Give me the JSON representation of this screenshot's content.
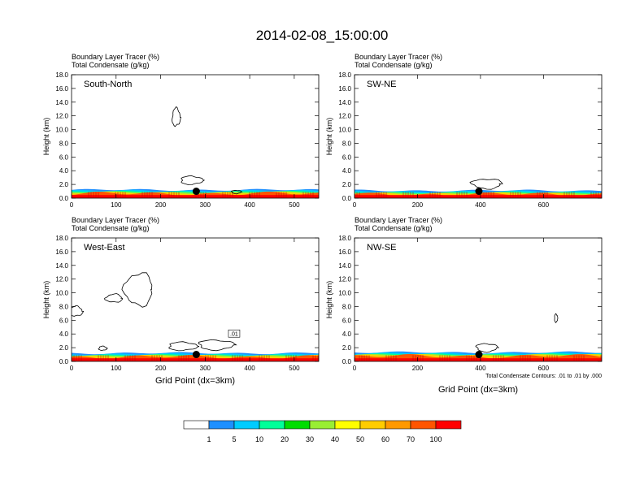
{
  "title": "2014-02-08_15:00:00",
  "chart_data": [
    {
      "type": "heatmap",
      "panel": "South-North",
      "label": "South-North",
      "line1": "Boundary Layer Tracer   (%)",
      "line2": "Total Condensate   (g/kg)",
      "ylabel": "Height (km)",
      "xlabel": "",
      "xlim": [
        0,
        555
      ],
      "ylim": [
        0,
        18
      ],
      "xticks": [
        "0",
        "100",
        "200",
        "300",
        "400",
        "500"
      ],
      "xtick_values": [
        0,
        100,
        200,
        300,
        400,
        500
      ],
      "yticks": [
        "0.0",
        "2.0",
        "4.0",
        "6.0",
        "8.0",
        "10.0",
        "12.0",
        "14.0",
        "16.0",
        "18.0"
      ],
      "marker": {
        "x": 280,
        "y": 1.0
      },
      "pbl_top_km": 1.2
    },
    {
      "type": "heatmap",
      "panel": "SW-NE",
      "label": "SW-NE",
      "line1": "Boundary Layer Tracer   (%)",
      "line2": "Total Condensate   (g/kg)",
      "ylabel": "Height (km)",
      "xlabel": "",
      "xlim": [
        0,
        785
      ],
      "ylim": [
        0,
        18
      ],
      "xticks": [
        "0",
        "200",
        "400",
        "600"
      ],
      "xtick_values": [
        0,
        200,
        400,
        600
      ],
      "yticks": [
        "0.0",
        "2.0",
        "4.0",
        "6.0",
        "8.0",
        "10.0",
        "12.0",
        "14.0",
        "16.0",
        "18.0"
      ],
      "marker": {
        "x": 395,
        "y": 1.0
      },
      "pbl_top_km": 1.1
    },
    {
      "type": "heatmap",
      "panel": "West-East",
      "label": "West-East",
      "line1": "Boundary Layer Tracer   (%)",
      "line2": "Total Condensate   (g/kg)",
      "ylabel": "Height (km)",
      "xlabel": "Grid Point (dx=3km)",
      "xlim": [
        0,
        555
      ],
      "ylim": [
        0,
        18
      ],
      "xticks": [
        "0",
        "100",
        "200",
        "300",
        "400",
        "500"
      ],
      "xtick_values": [
        0,
        100,
        200,
        300,
        400,
        500
      ],
      "yticks": [
        "0.0",
        "2.0",
        "4.0",
        "6.0",
        "8.0",
        "10.0",
        "12.0",
        "14.0",
        "16.0",
        "18.0"
      ],
      "marker": {
        "x": 280,
        "y": 1.0
      },
      "pbl_top_km": 1.2,
      "contour_label": ".01"
    },
    {
      "type": "heatmap",
      "panel": "NW-SE",
      "label": "NW-SE",
      "line1": "Boundary Layer Tracer   (%)",
      "line2": "Total Condensate   (g/kg)",
      "ylabel": "Height (km)",
      "xlabel": "Grid Point (dx=3km)",
      "xlim": [
        0,
        785
      ],
      "ylim": [
        0,
        18
      ],
      "xticks": [
        "0",
        "200",
        "400",
        "600"
      ],
      "xtick_values": [
        0,
        200,
        400,
        600
      ],
      "yticks": [
        "0.0",
        "2.0",
        "4.0",
        "6.0",
        "8.0",
        "10.0",
        "12.0",
        "14.0",
        "16.0",
        "18.0"
      ],
      "marker": {
        "x": 395,
        "y": 1.0
      },
      "pbl_top_km": 1.3,
      "note": "Total Condensate Contours: .01 to .01 by .000"
    }
  ],
  "colorbar": {
    "labels": [
      "1",
      "5",
      "10",
      "20",
      "30",
      "40",
      "50",
      "60",
      "70",
      "100"
    ],
    "colors": [
      "#ffffff",
      "#1e90ff",
      "#00ccff",
      "#00ff99",
      "#00dd00",
      "#99ee33",
      "#ffff00",
      "#ffcc00",
      "#ff9900",
      "#ff5500",
      "#ff0000"
    ]
  }
}
